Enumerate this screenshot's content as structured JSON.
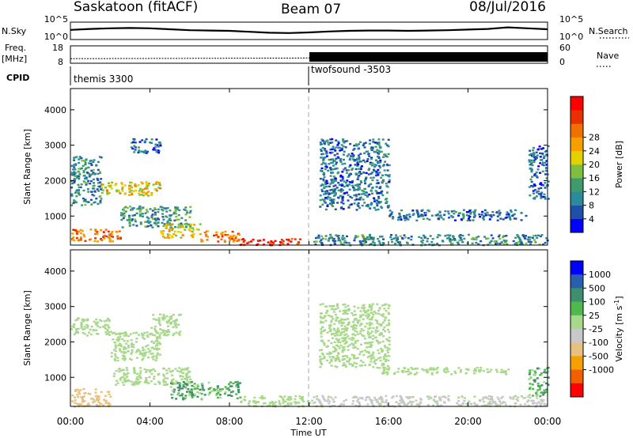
{
  "header": {
    "title": "Saskatoon (fitACF)",
    "beam": "Beam 07",
    "date": "08/Jul/2016"
  },
  "nsky_panel": {
    "left_label": "N.Sky",
    "left_ticks": [
      "10^5",
      "10^0"
    ],
    "right_ticks": [
      "10^5",
      "10^0"
    ],
    "right_label": "N.Search"
  },
  "freq_panel": {
    "left_label": "Freq.",
    "unit_label": "[MHz]",
    "left_ticks": [
      "18",
      "8"
    ],
    "right_ticks": [
      "60",
      "0"
    ],
    "right_label": "Nave"
  },
  "cpid": {
    "label": "CPID",
    "segments": [
      {
        "name": "themis 3300",
        "start_h": 0,
        "end_h": 12
      },
      {
        "name": "twofsound -3503",
        "start_h": 12,
        "end_h": 24
      }
    ]
  },
  "time_axis": {
    "label": "Time UT",
    "tick_labels": [
      "00:00",
      "04:00",
      "08:00",
      "12:00",
      "16:00",
      "20:00",
      "00:00"
    ]
  },
  "colors": {
    "power_scale": [
      "#0000ff",
      "#1f4fa8",
      "#2b8a9b",
      "#3f9a6e",
      "#7fbf3f",
      "#e5d000",
      "#f5a000",
      "#f07000",
      "#e83000",
      "#ff0000"
    ],
    "velocity_scale": [
      "#0000ff",
      "#2a5fb0",
      "#3f8f6f",
      "#4fb84f",
      "#a8d88a",
      "#c8c8c8",
      "#e8c080",
      "#f5a000",
      "#f06000",
      "#ff0000"
    ]
  },
  "chart_data": [
    {
      "type": "line",
      "name": "nsky-timeseries",
      "xlim": [
        0,
        24
      ],
      "ylim": [
        0,
        5
      ],
      "y_log_base": 10,
      "x_hours": [
        0,
        1,
        2,
        3,
        4,
        5,
        6,
        7,
        8,
        9,
        10,
        11,
        12,
        13,
        14,
        15,
        16,
        17,
        18,
        19,
        20,
        21,
        22,
        23,
        24
      ],
      "values": [
        2.8,
        3.1,
        3.3,
        3.4,
        3.3,
        3.0,
        2.7,
        2.6,
        2.5,
        2.2,
        1.9,
        1.8,
        2.0,
        2.3,
        2.5,
        2.6,
        2.6,
        2.5,
        2.6,
        2.7,
        2.9,
        3.1,
        3.6,
        3.3,
        3.0
      ]
    },
    {
      "type": "line",
      "name": "frequency-timeseries",
      "xlim": [
        0,
        24
      ],
      "ylim": [
        8,
        18
      ],
      "x_hours": [
        0,
        12,
        12,
        24
      ],
      "values": [
        10.4,
        10.8,
        10.9,
        11.0
      ],
      "nave_before_12h_range": [
        6,
        10
      ],
      "nave_after_12h_range": [
        18,
        46
      ]
    },
    {
      "type": "heatmap",
      "name": "power-rti",
      "xlabel": "",
      "ylabel": "Slant Range [km]",
      "xlim": [
        0,
        24
      ],
      "ylim": [
        180,
        4600
      ],
      "y_ticks": [
        1000,
        2000,
        3000,
        4000
      ],
      "colorbar": {
        "label": "Power [dB]",
        "range": [
          0,
          32
        ],
        "tick_values": [
          4,
          8,
          12,
          16,
          20,
          24,
          28
        ],
        "tick_labels": [
          "4",
          "8",
          "12",
          "16",
          "20",
          "24",
          "28"
        ]
      },
      "echo_regions": [
        {
          "t": [
            0.0,
            1.5
          ],
          "r": [
            1300,
            2700
          ],
          "power": 9
        },
        {
          "t": [
            1.5,
            4.5
          ],
          "r": [
            1600,
            2000
          ],
          "power": 18
        },
        {
          "t": [
            3.0,
            4.5
          ],
          "r": [
            2800,
            3200
          ],
          "power": 6
        },
        {
          "t": [
            0.0,
            2.5
          ],
          "r": [
            300,
            650
          ],
          "power": 24
        },
        {
          "t": [
            2.5,
            6.0
          ],
          "r": [
            700,
            1300
          ],
          "power": 10
        },
        {
          "t": [
            4.5,
            6.5
          ],
          "r": [
            400,
            800
          ],
          "power": 18
        },
        {
          "t": [
            6.5,
            8.5
          ],
          "r": [
            300,
            600
          ],
          "power": 24
        },
        {
          "t": [
            8.5,
            11.5
          ],
          "r": [
            200,
            400
          ],
          "power": 28
        },
        {
          "t": [
            12.5,
            16.0
          ],
          "r": [
            1200,
            3200
          ],
          "power": 7
        },
        {
          "t": [
            16.0,
            23.0
          ],
          "r": [
            900,
            1200
          ],
          "power": 7
        },
        {
          "t": [
            12.0,
            24.0
          ],
          "r": [
            200,
            500
          ],
          "power": 9
        },
        {
          "t": [
            23.0,
            24.0
          ],
          "r": [
            1500,
            3000
          ],
          "power": 6
        }
      ]
    },
    {
      "type": "heatmap",
      "name": "velocity-rti",
      "xlabel": "Time UT",
      "ylabel": "Slant Range [km]",
      "xlim": [
        0,
        24
      ],
      "ylim": [
        180,
        4600
      ],
      "y_ticks": [
        1000,
        2000,
        3000,
        4000
      ],
      "colorbar": {
        "label": "Velocity [m s^-1]",
        "tick_labels": [
          "1000",
          "500",
          "100",
          "25",
          "-25",
          "-100",
          "-500",
          "-1000"
        ]
      },
      "echo_regions": [
        {
          "t": [
            0.0,
            2.0
          ],
          "r": [
            2200,
            2700
          ],
          "velocity": 0
        },
        {
          "t": [
            2.0,
            4.5
          ],
          "r": [
            1500,
            2300
          ],
          "velocity": 0
        },
        {
          "t": [
            4.0,
            5.5
          ],
          "r": [
            2200,
            2800
          ],
          "velocity": 0
        },
        {
          "t": [
            0.0,
            2.0
          ],
          "r": [
            200,
            700
          ],
          "velocity": -300
        },
        {
          "t": [
            2.0,
            6.0
          ],
          "r": [
            800,
            1300
          ],
          "velocity": 0
        },
        {
          "t": [
            5.0,
            8.5
          ],
          "r": [
            400,
            900
          ],
          "velocity": 80
        },
        {
          "t": [
            8.5,
            12.0
          ],
          "r": [
            200,
            500
          ],
          "velocity": 0
        },
        {
          "t": [
            12.5,
            16.0
          ],
          "r": [
            1300,
            3100
          ],
          "velocity": 0
        },
        {
          "t": [
            15.5,
            22.0
          ],
          "r": [
            1100,
            1300
          ],
          "velocity": 0
        },
        {
          "t": [
            12.0,
            24.0
          ],
          "r": [
            200,
            500
          ],
          "velocity": -40
        },
        {
          "t": [
            23.0,
            24.0
          ],
          "r": [
            500,
            1300
          ],
          "velocity": 80
        }
      ]
    }
  ]
}
